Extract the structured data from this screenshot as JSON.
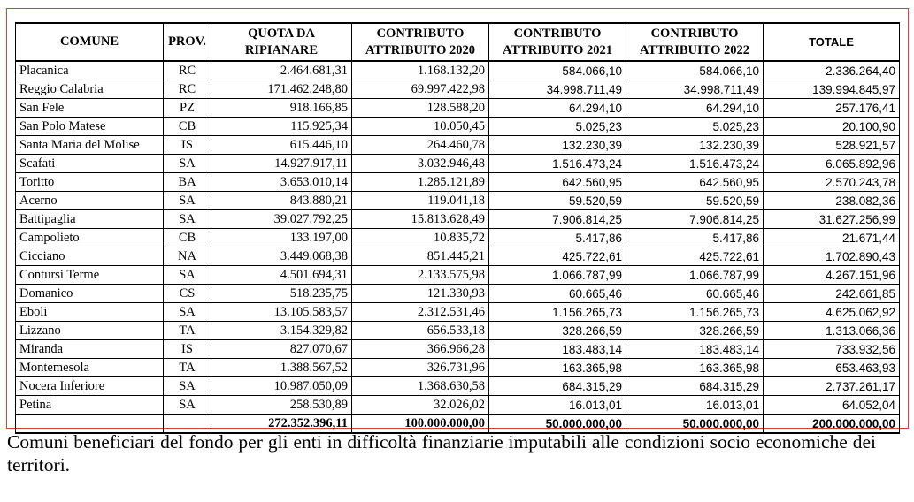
{
  "table": {
    "headers": {
      "comune": "COMUNE",
      "prov": "PROV.",
      "quota_line1": "QUOTA DA",
      "quota_line2": "RIPIANARE",
      "c2020_line1": "CONTRIBUTO",
      "c2020_line2": "ATTRIBUITO 2020",
      "c2021_line1": "CONTRIBUTO",
      "c2021_line2": "ATTRIBUITO 2021",
      "c2022_line1": "CONTRIBUTO",
      "c2022_line2": "ATTRIBUITO 2022",
      "totale": "TOTALE"
    },
    "rows": [
      {
        "comune": "Placanica",
        "prov": "RC",
        "quota": "2.464.681,31",
        "c2020": "1.168.132,20",
        "c2021": "584.066,10",
        "c2022": "584.066,10",
        "totale": "2.336.264,40"
      },
      {
        "comune": "Reggio Calabria",
        "prov": "RC",
        "quota": "171.462.248,80",
        "c2020": "69.997.422,98",
        "c2021": "34.998.711,49",
        "c2022": "34.998.711,49",
        "totale": "139.994.845,97"
      },
      {
        "comune": "San Fele",
        "prov": "PZ",
        "quota": "918.166,85",
        "c2020": "128.588,20",
        "c2021": "64.294,10",
        "c2022": "64.294,10",
        "totale": "257.176,41"
      },
      {
        "comune": "San Polo Matese",
        "prov": "CB",
        "quota": "115.925,34",
        "c2020": "10.050,45",
        "c2021": "5.025,23",
        "c2022": "5.025,23",
        "totale": "20.100,90"
      },
      {
        "comune": "Santa Maria del Molise",
        "prov": "IS",
        "quota": "615.446,10",
        "c2020": "264.460,78",
        "c2021": "132.230,39",
        "c2022": "132.230,39",
        "totale": "528.921,57"
      },
      {
        "comune": "Scafati",
        "prov": "SA",
        "quota": "14.927.917,11",
        "c2020": "3.032.946,48",
        "c2021": "1.516.473,24",
        "c2022": "1.516.473,24",
        "totale": "6.065.892,96"
      },
      {
        "comune": "Toritto",
        "prov": "BA",
        "quota": "3.653.010,14",
        "c2020": "1.285.121,89",
        "c2021": "642.560,95",
        "c2022": "642.560,95",
        "totale": "2.570.243,78"
      },
      {
        "comune": "Acerno",
        "prov": "SA",
        "quota": "843.880,21",
        "c2020": "119.041,18",
        "c2021": "59.520,59",
        "c2022": "59.520,59",
        "totale": "238.082,36"
      },
      {
        "comune": "Battipaglia",
        "prov": "SA",
        "quota": "39.027.792,25",
        "c2020": "15.813.628,49",
        "c2021": "7.906.814,25",
        "c2022": "7.906.814,25",
        "totale": "31.627.256,99"
      },
      {
        "comune": "Campolieto",
        "prov": "CB",
        "quota": "133.197,00",
        "c2020": "10.835,72",
        "c2021": "5.417,86",
        "c2022": "5.417,86",
        "totale": "21.671,44"
      },
      {
        "comune": "Cicciano",
        "prov": "NA",
        "quota": "3.449.068,38",
        "c2020": "851.445,21",
        "c2021": "425.722,61",
        "c2022": "425.722,61",
        "totale": "1.702.890,43"
      },
      {
        "comune": "Contursi Terme",
        "prov": "SA",
        "quota": "4.501.694,31",
        "c2020": "2.133.575,98",
        "c2021": "1.066.787,99",
        "c2022": "1.066.787,99",
        "totale": "4.267.151,96"
      },
      {
        "comune": "Domanico",
        "prov": "CS",
        "quota": "518.235,75",
        "c2020": "121.330,93",
        "c2021": "60.665,46",
        "c2022": "60.665,46",
        "totale": "242.661,85"
      },
      {
        "comune": "Eboli",
        "prov": "SA",
        "quota": "13.105.583,57",
        "c2020": "2.312.531,46",
        "c2021": "1.156.265,73",
        "c2022": "1.156.265,73",
        "totale": "4.625.062,92"
      },
      {
        "comune": "Lizzano",
        "prov": "TA",
        "quota": "3.154.329,82",
        "c2020": "656.533,18",
        "c2021": "328.266,59",
        "c2022": "328.266,59",
        "totale": "1.313.066,36"
      },
      {
        "comune": "Miranda",
        "prov": "IS",
        "quota": "827.070,67",
        "c2020": "366.966,28",
        "c2021": "183.483,14",
        "c2022": "183.483,14",
        "totale": "733.932,56"
      },
      {
        "comune": "Montemesola",
        "prov": "TA",
        "quota": "1.388.567,52",
        "c2020": "326.731,96",
        "c2021": "163.365,98",
        "c2022": "163.365,98",
        "totale": "653.463,93"
      },
      {
        "comune": "Nocera Inferiore",
        "prov": "SA",
        "quota": "10.987.050,09",
        "c2020": "1.368.630,58",
        "c2021": "684.315,29",
        "c2022": "684.315,29",
        "totale": "2.737.261,17"
      },
      {
        "comune": "Petina",
        "prov": "SA",
        "quota": "258.530,89",
        "c2020": "32.026,02",
        "c2021": "16.013,01",
        "c2022": "16.013,01",
        "totale": "64.052,04"
      }
    ],
    "totals": {
      "comune": "",
      "prov": "",
      "quota": "272.352.396,11",
      "c2020": "100.000.000,00",
      "c2021": "50.000.000,00",
      "c2022": "50.000.000,00",
      "totale": "200.000.000,00"
    }
  },
  "caption": "Comuni beneficiari del fondo per gli enti in difficoltà finanziarie imputabili alle condizioni socio economiche dei territori.",
  "colors": {
    "frame_border": "#e03c3c",
    "text": "#000000",
    "background": "#ffffff"
  }
}
